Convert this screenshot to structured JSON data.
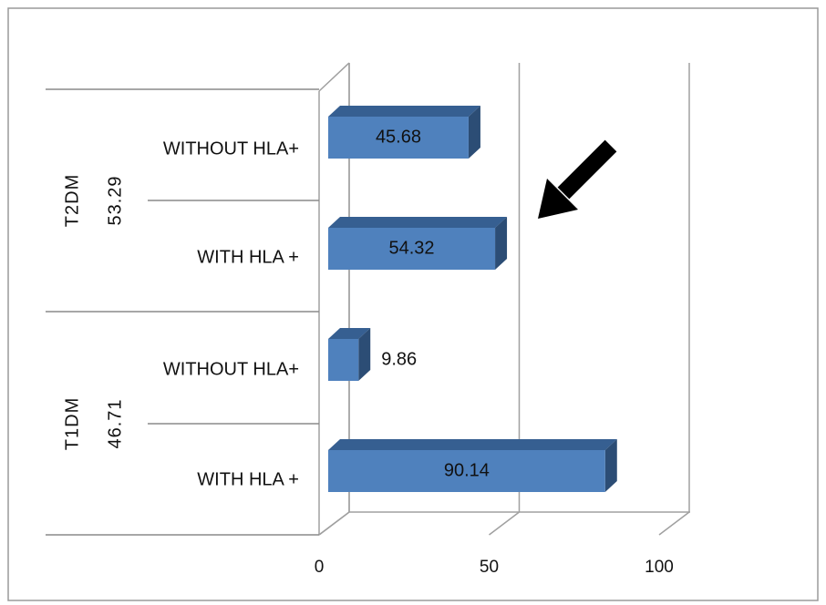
{
  "chart_data": {
    "type": "bar",
    "orientation": "horizontal",
    "style": "3d",
    "xlim": [
      0,
      100
    ],
    "xticks": [
      "0",
      "50",
      "100"
    ],
    "grid": true,
    "legend": "none",
    "bar_color": "#4F81BD",
    "groups": [
      {
        "name": "T2DM",
        "total": "53.29"
      },
      {
        "name": "T1DM",
        "total": "46.71"
      }
    ],
    "bars": [
      {
        "group": "T2DM",
        "category": "WITHOUT HLA+",
        "value": 45.68,
        "label": "45.68"
      },
      {
        "group": "T2DM",
        "category": "WITH HLA +",
        "value": 54.32,
        "label": "54.32"
      },
      {
        "group": "T1DM",
        "category": "WITHOUT HLA+",
        "value": 9.86,
        "label": "9.86"
      },
      {
        "group": "T1DM",
        "category": "WITH HLA +",
        "value": 90.14,
        "label": "90.14"
      }
    ],
    "annotations": [
      {
        "type": "arrow",
        "points_to": "T2DM / WITH HLA +"
      }
    ]
  }
}
